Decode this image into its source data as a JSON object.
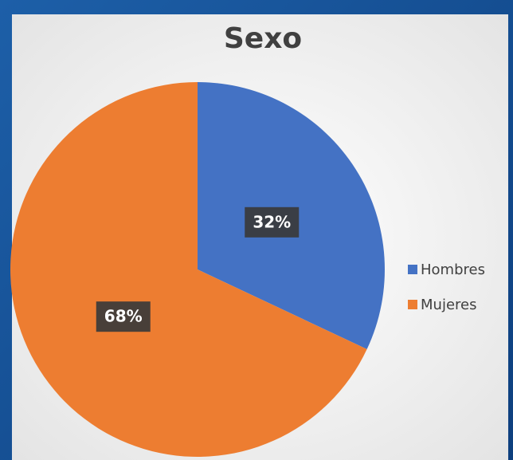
{
  "chart_data": {
    "type": "pie",
    "title": "Sexo",
    "categories": [
      "Hombres",
      "Mujeres"
    ],
    "values": [
      32,
      68
    ],
    "value_labels": [
      "32%",
      "68%"
    ],
    "colors": [
      "#4472c4",
      "#ed7d31"
    ],
    "legend": "right"
  }
}
